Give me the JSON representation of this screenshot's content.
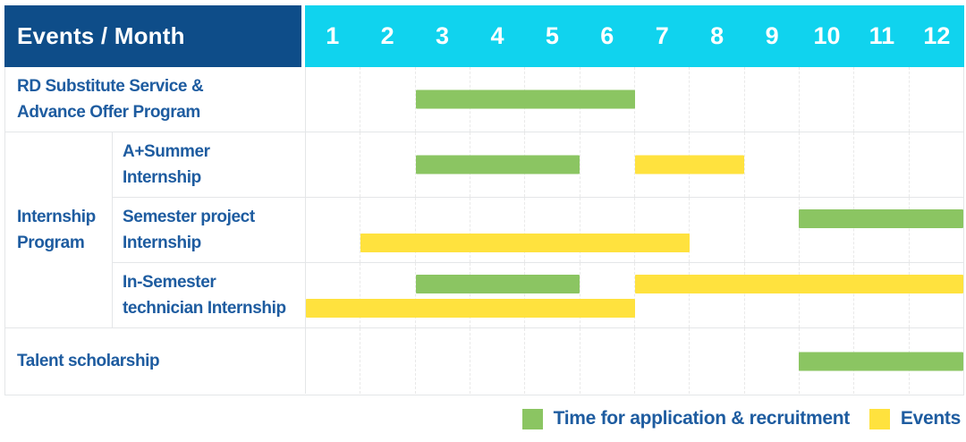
{
  "chart_data": {
    "type": "bar",
    "subtype": "gantt-schedule",
    "corner_label": "Events / Month",
    "months": [
      "1",
      "2",
      "3",
      "4",
      "5",
      "6",
      "7",
      "8",
      "9",
      "10",
      "11",
      "12"
    ],
    "x_range": [
      1,
      12
    ],
    "grid": "dashed-vertical-month-lines",
    "group": {
      "label_lines": [
        "Internship",
        "Program"
      ],
      "covers_rows": [
        "A+Summer Internship",
        "Semester project Internship",
        "In-Semester technician Internship"
      ]
    },
    "rows": [
      {
        "label_lines": [
          "RD Substitute Service &",
          "Advance Offer Program"
        ],
        "in_group": false,
        "bars": [
          {
            "category": "application",
            "color": "green",
            "start_month": 3,
            "end_month": 6,
            "lane": "center"
          }
        ]
      },
      {
        "label_lines": [
          "A+Summer",
          "Internship"
        ],
        "in_group": true,
        "bars": [
          {
            "category": "application",
            "color": "green",
            "start_month": 3,
            "end_month": 5,
            "lane": "center"
          },
          {
            "category": "event",
            "color": "yellow",
            "start_month": 7,
            "end_month": 8,
            "lane": "center"
          }
        ]
      },
      {
        "label_lines": [
          "Semester project",
          "Internship"
        ],
        "in_group": true,
        "bars": [
          {
            "category": "application",
            "color": "green",
            "start_month": 10,
            "end_month": 12,
            "lane": "top"
          },
          {
            "category": "event",
            "color": "yellow",
            "start_month": 2,
            "end_month": 7,
            "lane": "bottom"
          }
        ]
      },
      {
        "label_lines": [
          "In-Semester",
          "technician Internship"
        ],
        "in_group": true,
        "bars": [
          {
            "category": "application",
            "color": "green",
            "start_month": 3,
            "end_month": 5,
            "lane": "top"
          },
          {
            "category": "event",
            "color": "yellow",
            "start_month": 7,
            "end_month": 12,
            "lane": "top"
          },
          {
            "category": "event",
            "color": "yellow",
            "start_month": 1,
            "end_month": 6,
            "lane": "bottom"
          }
        ]
      },
      {
        "label_lines": [
          "Talent scholarship"
        ],
        "in_group": false,
        "bars": [
          {
            "category": "application",
            "color": "green",
            "start_month": 10,
            "end_month": 12,
            "lane": "center"
          }
        ]
      }
    ],
    "legend": [
      {
        "color": "green",
        "label": "Time for application & recruitment"
      },
      {
        "color": "yellow",
        "label": "Events"
      }
    ],
    "colors": {
      "green": "#8bc562",
      "yellow": "#ffe23e",
      "header_navy": "#0e4d89",
      "header_cyan": "#10d3ee",
      "text_blue": "#1e5ca0",
      "grid_line": "#e4e6e8"
    }
  }
}
